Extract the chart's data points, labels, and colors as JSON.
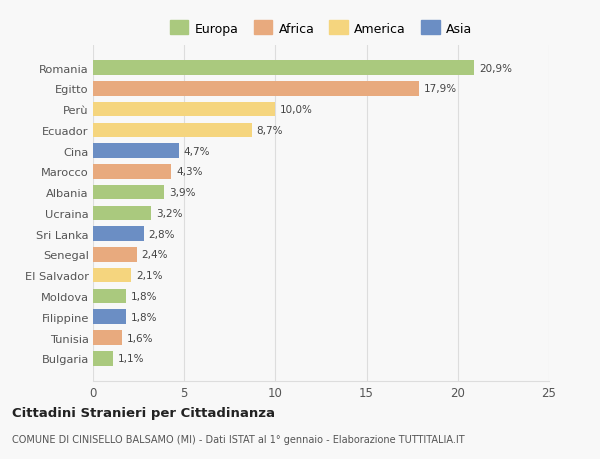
{
  "countries": [
    "Romania",
    "Egitto",
    "Perù",
    "Ecuador",
    "Cina",
    "Marocco",
    "Albania",
    "Ucraina",
    "Sri Lanka",
    "Senegal",
    "El Salvador",
    "Moldova",
    "Filippine",
    "Tunisia",
    "Bulgaria"
  ],
  "values": [
    20.9,
    17.9,
    10.0,
    8.7,
    4.7,
    4.3,
    3.9,
    3.2,
    2.8,
    2.4,
    2.1,
    1.8,
    1.8,
    1.6,
    1.1
  ],
  "labels": [
    "20,9%",
    "17,9%",
    "10,0%",
    "8,7%",
    "4,7%",
    "4,3%",
    "3,9%",
    "3,2%",
    "2,8%",
    "2,4%",
    "2,1%",
    "1,8%",
    "1,8%",
    "1,6%",
    "1,1%"
  ],
  "colors": [
    "#aac97e",
    "#e8aa7e",
    "#f5d57e",
    "#f5d57e",
    "#6b8ec4",
    "#e8aa7e",
    "#aac97e",
    "#aac97e",
    "#6b8ec4",
    "#e8aa7e",
    "#f5d57e",
    "#aac97e",
    "#6b8ec4",
    "#e8aa7e",
    "#aac97e"
  ],
  "legend_labels": [
    "Europa",
    "Africa",
    "America",
    "Asia"
  ],
  "legend_colors": [
    "#aac97e",
    "#e8aa7e",
    "#f5d57e",
    "#6b8ec4"
  ],
  "title": "Cittadini Stranieri per Cittadinanza",
  "subtitle": "COMUNE DI CINISELLO BALSAMO (MI) - Dati ISTAT al 1° gennaio - Elaborazione TUTTITALIA.IT",
  "xlim": [
    0,
    25
  ],
  "xticks": [
    0,
    5,
    10,
    15,
    20,
    25
  ],
  "background_color": "#f8f8f8",
  "grid_color": "#dddddd"
}
